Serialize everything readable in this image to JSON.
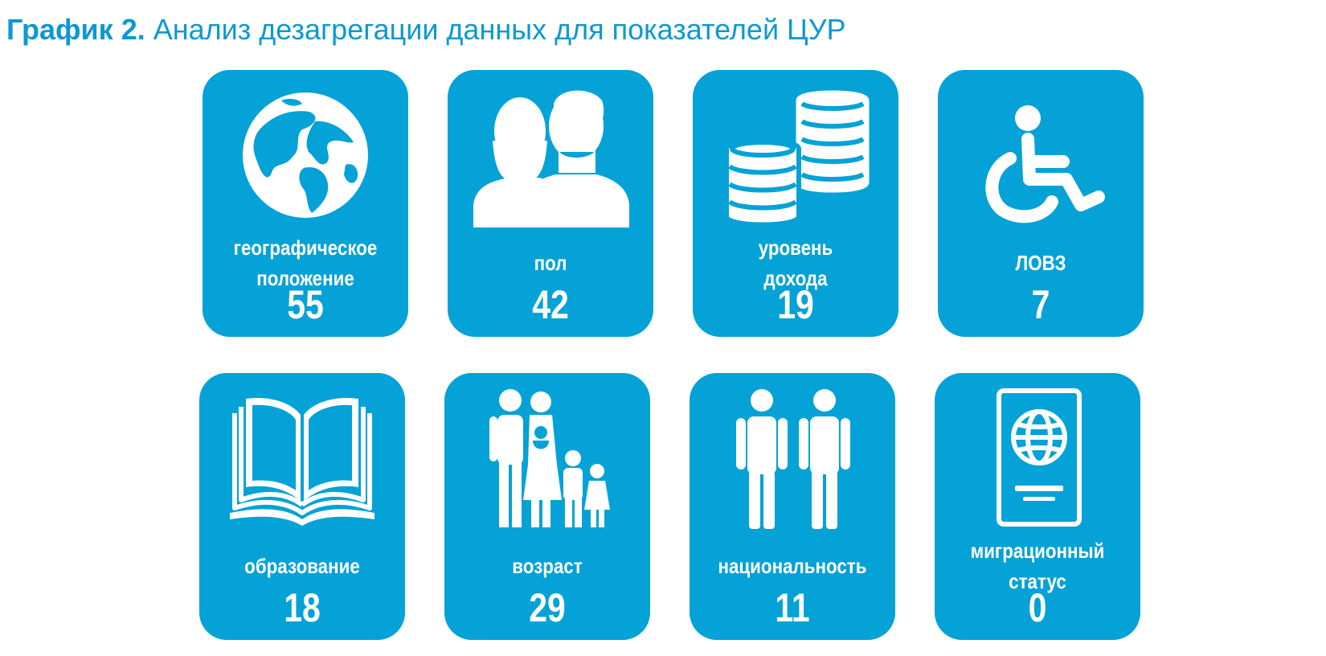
{
  "title": {
    "prefix": "График 2.",
    "text": "Анализ дезагрегации данных для показателей ЦУР"
  },
  "colors": {
    "card": "#04a2d6",
    "title": "#0d98d3",
    "text": "#ffffff"
  },
  "chart_data": {
    "type": "table",
    "categories": [
      "географическое положение",
      "пол",
      "уровень дохода",
      "ЛОВЗ",
      "образование",
      "возраст",
      "национальность",
      "миграционный статус"
    ],
    "values": [
      55,
      42,
      19,
      7,
      18,
      29,
      11,
      0
    ]
  },
  "cards": [
    {
      "icon": "globe-icon",
      "label_lines": [
        "географическое",
        "положение"
      ],
      "value": "55"
    },
    {
      "icon": "gender-icon",
      "label_lines": [
        "пол"
      ],
      "value": "42"
    },
    {
      "icon": "coins-icon",
      "label_lines": [
        "уровень",
        "дохода"
      ],
      "value": "19"
    },
    {
      "icon": "wheelchair-icon",
      "label_lines": [
        "ЛОВЗ"
      ],
      "value": "7"
    },
    {
      "icon": "book-icon",
      "label_lines": [
        "образование"
      ],
      "value": "18"
    },
    {
      "icon": "family-icon",
      "label_lines": [
        "возраст"
      ],
      "value": "29"
    },
    {
      "icon": "people-icon",
      "label_lines": [
        "национальность"
      ],
      "value": "11"
    },
    {
      "icon": "passport-icon",
      "label_lines": [
        "миграционный",
        "статус"
      ],
      "value": "0"
    }
  ]
}
